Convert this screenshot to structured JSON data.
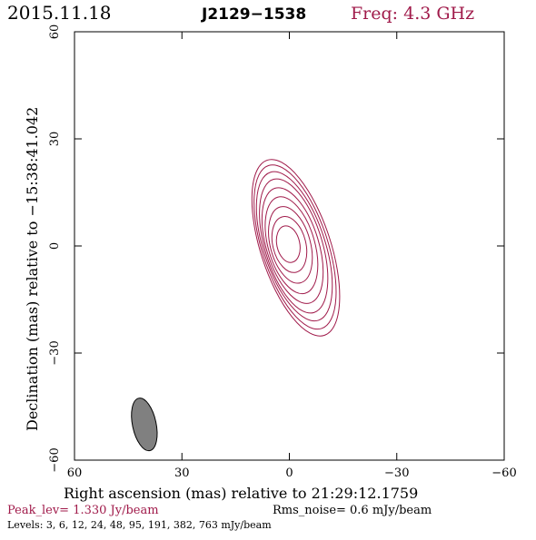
{
  "header": {
    "date": "2015.11.18",
    "source": "J2129−1538",
    "frequency": "Freq: 4.3 GHz"
  },
  "footer": {
    "peak_level": "Peak_lev=  1.330 Jy/beam",
    "rms_noise": "Rms_noise=  0.6 mJy/beam",
    "levels": "Levels:   3,   6,  12,  24,  48,  95, 191, 382, 763 mJy/beam"
  },
  "colors": {
    "contour": "#a01a4a",
    "beam_fill": "#808080",
    "accent_text": "#a01a4a"
  },
  "chart_data": {
    "type": "contour",
    "xlabel": "Right ascension (mas) relative to 21:29:12.1759",
    "ylabel": "Declination (mas) relative to −15:38:41.042",
    "xlim": [
      60,
      -60
    ],
    "ylim": [
      -60,
      60
    ],
    "x_ticks": [
      60,
      30,
      0,
      -30,
      -60
    ],
    "y_ticks": [
      -60,
      -30,
      0,
      30,
      60
    ],
    "x_tick_labels": [
      "60",
      "30",
      "0",
      "−30",
      "−60"
    ],
    "y_tick_labels": [
      "−60",
      "−30",
      "0",
      "30",
      "60"
    ],
    "grid": false,
    "contour_levels_mJy": [
      3,
      6,
      12,
      24,
      48,
      95,
      191,
      382,
      763
    ],
    "contours": [
      {
        "cx": 0.3,
        "cy": 0.5,
        "a": 5.2,
        "b": 3.2,
        "pa": 12
      },
      {
        "cx": 0.0,
        "cy": 0.4,
        "a": 8.0,
        "b": 4.6,
        "pa": 14
      },
      {
        "cx": -0.3,
        "cy": 0.3,
        "a": 11.0,
        "b": 5.6,
        "pa": 15
      },
      {
        "cx": -0.6,
        "cy": 0.2,
        "a": 14.0,
        "b": 6.5,
        "pa": 16
      },
      {
        "cx": -0.9,
        "cy": 0.1,
        "a": 16.8,
        "b": 7.3,
        "pa": 17
      },
      {
        "cx": -1.2,
        "cy": 0.0,
        "a": 19.5,
        "b": 8.0,
        "pa": 17
      },
      {
        "cx": -1.4,
        "cy": -0.1,
        "a": 21.8,
        "b": 8.6,
        "pa": 18
      },
      {
        "cx": -1.6,
        "cy": -0.3,
        "a": 24.0,
        "b": 9.2,
        "pa": 18
      },
      {
        "cx": -1.8,
        "cy": -0.5,
        "a": 25.8,
        "b": 9.8,
        "pa": 18
      }
    ],
    "beam": {
      "cx": 40.5,
      "cy": -50,
      "a": 7.5,
      "b": 3.3,
      "pa": 12
    }
  }
}
